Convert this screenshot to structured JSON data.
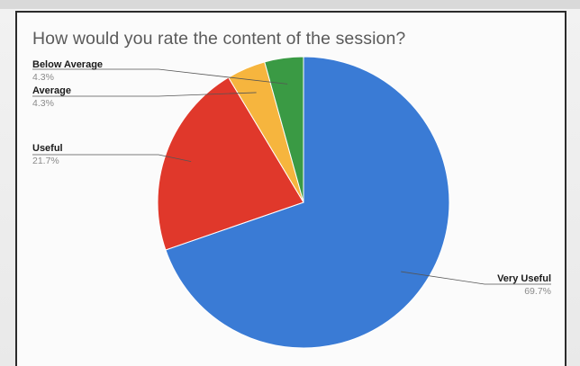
{
  "chart_data": {
    "type": "pie",
    "title": "How would you rate the content of the session?",
    "slices": [
      {
        "label": "Very Useful",
        "percent_label": "69.7%",
        "value": 69.7,
        "color": "#3a7bd5"
      },
      {
        "label": "Useful",
        "percent_label": "21.7%",
        "value": 21.7,
        "color": "#e0382b"
      },
      {
        "label": "Average",
        "percent_label": "4.3%",
        "value": 4.3,
        "color": "#f6b53e"
      },
      {
        "label": "Below Average",
        "percent_label": "4.3%",
        "value": 4.3,
        "color": "#3a9a44"
      }
    ],
    "legend": "labels beside slices"
  }
}
